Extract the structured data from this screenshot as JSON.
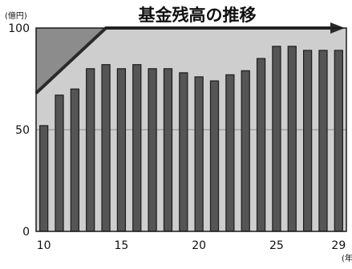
{
  "chart_data": {
    "type": "bar",
    "title": "基金残高の推移",
    "y_unit": "(億円)",
    "x_unit": "(年",
    "categories": [
      10,
      11,
      12,
      13,
      14,
      15,
      16,
      17,
      18,
      19,
      20,
      21,
      22,
      23,
      24,
      25,
      26,
      27,
      28,
      29
    ],
    "values": [
      52,
      67,
      70,
      80,
      82,
      80,
      82,
      80,
      80,
      78,
      76,
      74,
      77,
      79,
      85,
      91,
      91,
      89,
      89,
      89
    ],
    "ylim": [
      0,
      100
    ],
    "xlim": [
      9.5,
      29.5
    ],
    "y_ticks": [
      0,
      50,
      100
    ],
    "x_ticks": [
      10,
      15,
      20,
      25,
      29
    ],
    "trend_arrow": {
      "x": [
        9.5,
        14,
        29.5
      ],
      "y": [
        68,
        100,
        100
      ]
    },
    "colors": {
      "bar": "#555555",
      "bar_edge": "#1c1c1c",
      "above_trend": "#8c8c8c",
      "below_trend": "#cecece",
      "arrow": "#2a2a2a",
      "frame": "#1a1a1a"
    }
  }
}
